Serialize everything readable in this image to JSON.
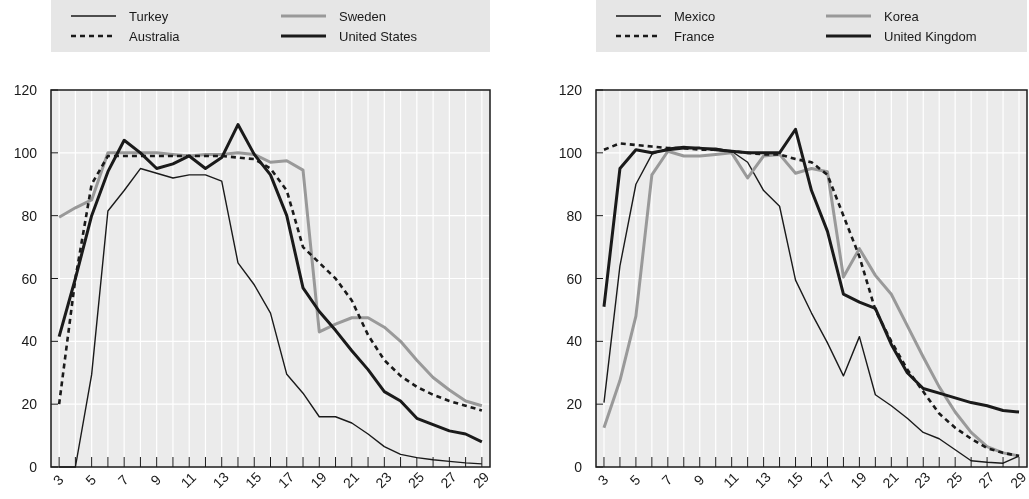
{
  "chart_data": [
    {
      "type": "line",
      "categories": [
        "3",
        null,
        "5",
        null,
        "7",
        null,
        "9",
        null,
        "11",
        null,
        "13",
        null,
        "15",
        null,
        "17",
        null,
        "19",
        null,
        "21",
        null,
        "23",
        null,
        "25",
        null,
        "27",
        null,
        "29"
      ],
      "ylim": [
        0,
        120
      ],
      "yticks": [
        0,
        20,
        40,
        60,
        80,
        100,
        120
      ],
      "grid": true,
      "legend": "top",
      "series": [
        {
          "name": "Turkey",
          "color": "#1a1a1a",
          "line_style": "solid",
          "values": [
            0,
            0,
            29.4,
            81.5,
            88,
            95,
            93.5,
            92,
            93,
            93,
            91,
            65,
            58,
            49,
            29.5,
            23.5,
            16,
            16,
            14,
            10.5,
            6.5,
            4,
            3,
            2.3,
            1.8,
            1.3,
            1
          ]
        },
        {
          "name": "Sweden",
          "color": "#999999",
          "line_style": "solid",
          "values": [
            79.5,
            82.5,
            85,
            100,
            100,
            100,
            100,
            99.5,
            99,
            99.5,
            99.5,
            100,
            99.5,
            97,
            97.5,
            94.5,
            43,
            45.5,
            47.5,
            47.5,
            44.5,
            40,
            34,
            28.5,
            24.5,
            21,
            19.5
          ]
        },
        {
          "name": "Australia",
          "color": "#1a1a1a",
          "line_style": "dashed",
          "values": [
            20,
            60,
            90,
            99,
            99,
            99,
            99,
            99,
            99,
            99,
            99,
            98.5,
            98,
            95,
            88,
            70,
            65,
            60,
            53,
            42,
            34,
            29,
            25.5,
            23,
            21,
            19.5,
            18
          ]
        },
        {
          "name": "United States",
          "color": "#1a1a1a",
          "line_style": "solid",
          "values": [
            41.5,
            60,
            80,
            94,
            104,
            100,
            95,
            96.5,
            99,
            95,
            98.5,
            109,
            99.5,
            93,
            80,
            57,
            49.5,
            43.5,
            37,
            31,
            24,
            21,
            15.5,
            13.5,
            11.5,
            10.5,
            8
          ]
        }
      ]
    },
    {
      "type": "line",
      "categories": [
        "3",
        null,
        "5",
        null,
        "7",
        null,
        "9",
        null,
        "11",
        null,
        "13",
        null,
        "15",
        null,
        "17",
        null,
        "19",
        null,
        "21",
        null,
        "23",
        null,
        "25",
        null,
        "27",
        null,
        "29"
      ],
      "ylim": [
        0,
        120
      ],
      "yticks": [
        0,
        20,
        40,
        60,
        80,
        100,
        120
      ],
      "grid": true,
      "legend": "top",
      "series": [
        {
          "name": "Mexico",
          "color": "#1a1a1a",
          "line_style": "solid",
          "values": [
            20.5,
            64,
            90,
            99.5,
            101.5,
            102,
            101.5,
            101.5,
            100.5,
            97,
            88,
            83,
            59.5,
            49,
            39.5,
            29,
            41.5,
            23,
            19.5,
            15.5,
            11,
            9,
            5.5,
            2,
            1.5,
            1.2,
            3.5
          ]
        },
        {
          "name": "Korea",
          "color": "#999999",
          "line_style": "solid",
          "values": [
            12.5,
            27.5,
            48,
            93,
            100.5,
            99,
            99,
            99.5,
            100,
            92,
            99,
            99.5,
            93.5,
            95,
            94,
            60.5,
            69.5,
            61,
            55,
            45,
            35,
            25.5,
            17.5,
            11,
            6.5,
            4.5,
            3.5
          ]
        },
        {
          "name": "France",
          "color": "#1a1a1a",
          "line_style": "dashed",
          "values": [
            101,
            103,
            102.5,
            102,
            101.5,
            101.5,
            101,
            101,
            100.5,
            100,
            99.5,
            99.5,
            98,
            97,
            93,
            80,
            67,
            50,
            40,
            31,
            24,
            17,
            12.5,
            9,
            6,
            4.5,
            3.5
          ]
        },
        {
          "name": "United Kingdom",
          "color": "#1a1a1a",
          "line_style": "solid",
          "values": [
            51,
            95,
            101,
            100,
            101,
            101.5,
            101.5,
            101,
            100.5,
            100,
            100,
            100,
            107.5,
            88,
            75,
            55,
            52.5,
            50.5,
            39,
            30,
            25,
            23.5,
            22,
            20.5,
            19.5,
            18,
            17.5
          ]
        }
      ]
    }
  ]
}
